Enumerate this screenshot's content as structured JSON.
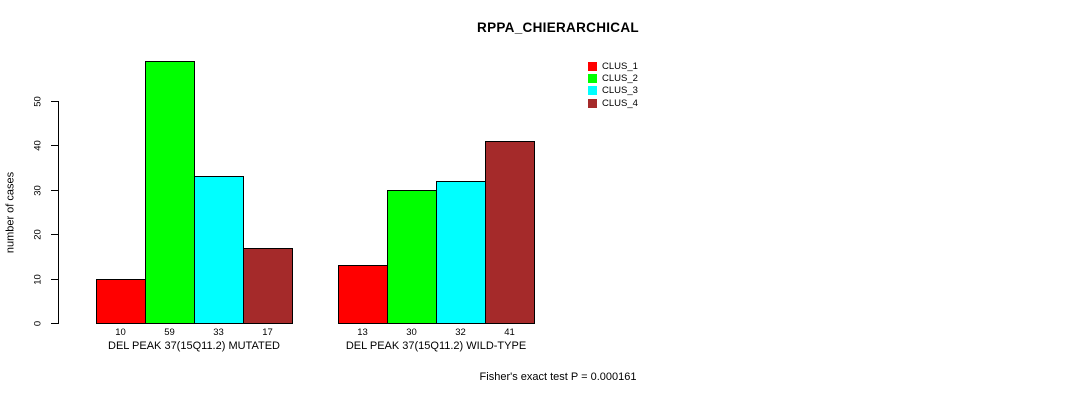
{
  "chart_data": {
    "type": "bar",
    "title": "RPPA_CHIERARCHICAL",
    "xlabel": "",
    "ylabel": "number of cases",
    "categories": [
      "DEL PEAK 37(15Q11.2) MUTATED",
      "DEL PEAK 37(15Q11.2) WILD-TYPE"
    ],
    "series": [
      {
        "name": "CLUS_1",
        "color": "#FF0000",
        "values": [
          10,
          13
        ]
      },
      {
        "name": "CLUS_2",
        "color": "#00FF00",
        "values": [
          59,
          30
        ]
      },
      {
        "name": "CLUS_3",
        "color": "#00FFFF",
        "values": [
          33,
          32
        ]
      },
      {
        "name": "CLUS_4",
        "color": "#A52A2A",
        "values": [
          17,
          41
        ]
      }
    ],
    "yticks": [
      0,
      10,
      20,
      30,
      40,
      50
    ],
    "ylim": [
      0,
      50
    ],
    "grid": "off",
    "legend_position": "top-center-inside",
    "value_labels_under_bars": true,
    "annotation": "Fisher's exact test P = 0.000161",
    "axis_color": "#000000",
    "bar_border_color": "#000000"
  }
}
